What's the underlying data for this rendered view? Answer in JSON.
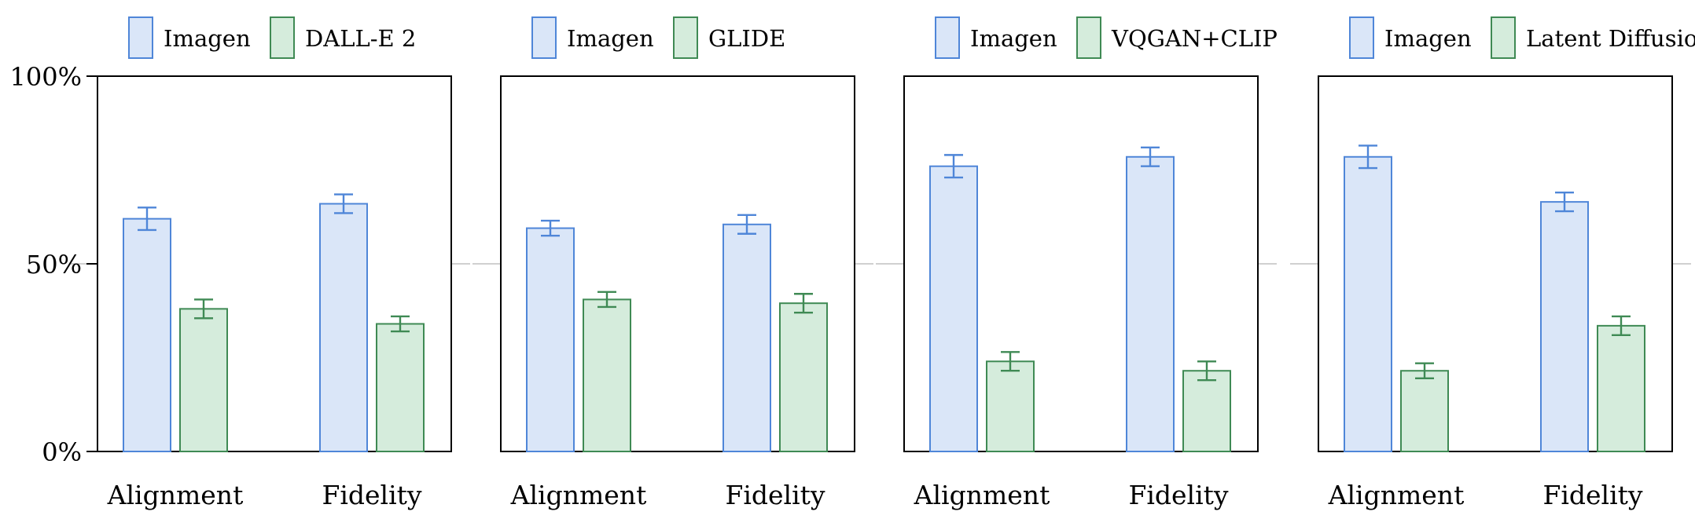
{
  "colors": {
    "imagen_fill": "#dae6f8",
    "imagen_stroke": "#4f86d8",
    "other_fill": "#d5ecdc",
    "other_stroke": "#3f8a54",
    "axis": "#000000",
    "gridline": "#b3b3b3"
  },
  "chart_data": [
    {
      "type": "bar",
      "categories": [
        "Alignment",
        "Fidelity"
      ],
      "ylim": [
        0,
        100
      ],
      "yticks": [
        "0%",
        "50%",
        "100%"
      ],
      "grid": false,
      "legend_position": "top",
      "series": [
        {
          "name": "Imagen",
          "values": [
            62,
            66
          ],
          "errors": [
            3,
            2.5
          ]
        },
        {
          "name": "DALL-E 2",
          "values": [
            38,
            34
          ],
          "errors": [
            2.5,
            2
          ]
        }
      ]
    },
    {
      "type": "bar",
      "categories": [
        "Alignment",
        "Fidelity"
      ],
      "ylim": [
        0,
        100
      ],
      "grid": false,
      "legend_position": "top",
      "series": [
        {
          "name": "Imagen",
          "values": [
            59.5,
            60.5
          ],
          "errors": [
            2,
            2.5
          ]
        },
        {
          "name": "GLIDE",
          "values": [
            40.5,
            39.5
          ],
          "errors": [
            2,
            2.5
          ]
        }
      ]
    },
    {
      "type": "bar",
      "categories": [
        "Alignment",
        "Fidelity"
      ],
      "ylim": [
        0,
        100
      ],
      "grid": false,
      "legend_position": "top",
      "series": [
        {
          "name": "Imagen",
          "values": [
            76,
            78.5
          ],
          "errors": [
            3,
            2.5
          ]
        },
        {
          "name": "VQGAN+CLIP",
          "values": [
            24,
            21.5
          ],
          "errors": [
            2.5,
            2.5
          ]
        }
      ]
    },
    {
      "type": "bar",
      "categories": [
        "Alignment",
        "Fidelity"
      ],
      "ylim": [
        0,
        100
      ],
      "grid": false,
      "legend_position": "top",
      "series": [
        {
          "name": "Imagen",
          "values": [
            78.5,
            66.5
          ],
          "errors": [
            3,
            2.5
          ]
        },
        {
          "name": "Latent Diffusion",
          "values": [
            21.5,
            33.5
          ],
          "errors": [
            2,
            2.5
          ]
        }
      ]
    }
  ]
}
